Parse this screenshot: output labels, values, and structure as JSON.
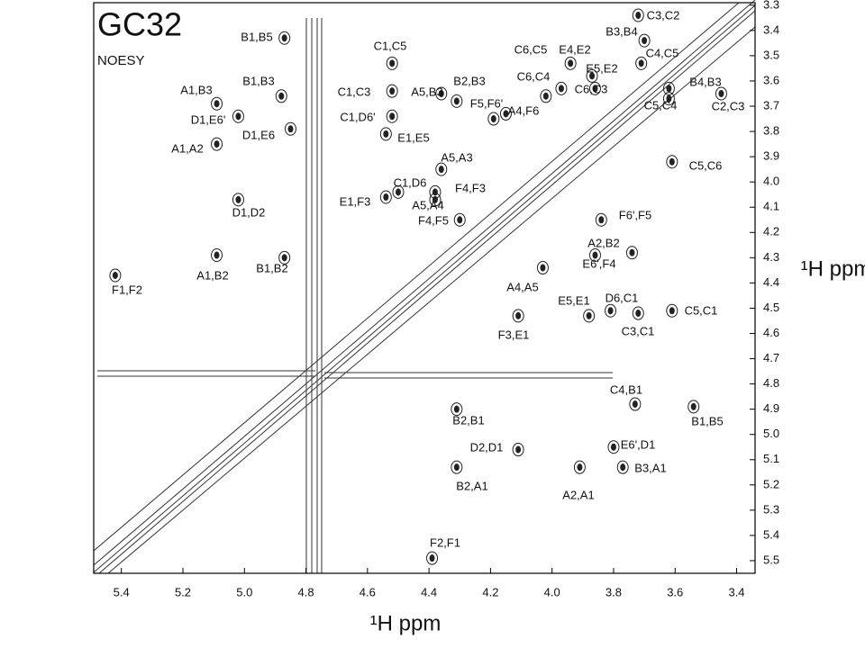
{
  "chart_data": {
    "type": "scatter",
    "title": "GC32",
    "subtitle": "NOESY",
    "x_label": "¹H ppm",
    "y_label": "¹H ppm",
    "xlim": [
      5.49,
      3.34
    ],
    "ylim": [
      3.29,
      5.55
    ],
    "xticks": [
      5.4,
      5.2,
      {
        "value": 5,
        "label": "5.0"
      },
      4.8,
      4.6,
      4.4,
      4.2,
      {
        "value": 4,
        "label": "4.0"
      },
      3.8,
      3.6,
      3.4
    ],
    "yticks": [
      3.3,
      3.4,
      3.5,
      3.6,
      3.7,
      3.8,
      3.9,
      {
        "value": 4,
        "label": "4.0"
      },
      4.1,
      4.2,
      4.3,
      4.4,
      4.5,
      4.6,
      4.7,
      4.8,
      4.9,
      {
        "value": 5,
        "label": "5.0"
      },
      5.1,
      5.2,
      5.3,
      5.4,
      5.5
    ],
    "color": "#222222",
    "point_labels": [
      "B1,B5",
      "B1,B3",
      "A1,B3",
      "D1,E6'",
      "D1,E6",
      "A1,A2",
      "D1,D2",
      "A1,B2",
      "B1,B2",
      "F1,F2",
      "C1,C5",
      "C1,C3",
      "C1,D6'",
      "E1,E5",
      "A5,B3",
      "B2,B3",
      "F5,F6'",
      "A4,F6",
      "A5,A3",
      "C1,D6",
      "F4,F3",
      "E1,F3",
      "A5,A4",
      "F4,F5",
      "C6,C5",
      "E4,E2",
      "C6,C4",
      "E5,E2",
      "C6,C3",
      "B3,B4",
      "C3,C2",
      "C4,C5",
      "B4,B3",
      "C5,C4",
      "C2,C3",
      "C5,C6",
      "F6',F5",
      "A2,B2",
      "E6',F4",
      "A4,A5",
      "E5,E1",
      "D6,C1",
      "C5,C1",
      "C3,C1",
      "F3,E1",
      "C4,B1",
      "B1,B5",
      "B2,B1",
      "D2,D1",
      "E6',D1",
      "B3,A1",
      "B2,A1",
      "A2,A1",
      "F2,F1"
    ],
    "x": [
      4.87,
      4.88,
      5.09,
      5.02,
      4.85,
      5.09,
      5.02,
      5.09,
      4.87,
      5.42,
      4.52,
      4.52,
      4.52,
      4.54,
      4.36,
      4.31,
      4.19,
      4.15,
      4.36,
      4.5,
      4.38,
      4.54,
      4.38,
      4.3,
      4.02,
      3.94,
      3.97,
      3.87,
      3.86,
      3.7,
      3.72,
      3.71,
      3.62,
      3.62,
      3.45,
      3.61,
      3.84,
      3.86,
      3.74,
      4.03,
      3.88,
      3.81,
      3.61,
      3.72,
      4.11,
      3.73,
      3.54,
      4.31,
      4.11,
      3.8,
      3.77,
      4.31,
      3.91,
      4.39
    ],
    "values": [
      3.43,
      3.66,
      3.69,
      3.74,
      3.79,
      3.85,
      4.07,
      4.29,
      4.3,
      4.37,
      3.53,
      3.64,
      3.74,
      3.81,
      3.65,
      3.68,
      3.75,
      3.73,
      3.95,
      4.04,
      4.07,
      4.06,
      4.04,
      4.15,
      3.66,
      3.53,
      3.63,
      3.58,
      3.63,
      3.44,
      3.34,
      3.53,
      3.63,
      3.67,
      3.65,
      3.92,
      4.15,
      4.29,
      4.28,
      4.34,
      4.53,
      4.51,
      4.51,
      4.52,
      4.53,
      4.88,
      4.89,
      4.9,
      5.06,
      5.05,
      5.13,
      5.13,
      5.13,
      5.49
    ]
  }
}
